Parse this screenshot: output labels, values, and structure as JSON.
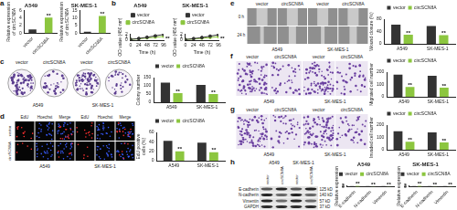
{
  "chart_data": [
    {
      "panel": "a",
      "type": "bar",
      "title": "A549",
      "y_label": "Relative expression of circSCN8A",
      "categories": [
        "vector",
        "circSCN8A"
      ],
      "values": [
        1,
        4.1
      ],
      "colors": [
        "#333333",
        "#8cc63f"
      ],
      "ylim": [
        0,
        6
      ],
      "yticks": [
        0,
        2,
        4,
        6
      ],
      "annotations": [
        {
          "text": "**",
          "category": "circSCN8A"
        }
      ]
    },
    {
      "type": "bar",
      "title": "SK-MES-1",
      "y_label": "Relative expression of circSCN8A",
      "categories": [
        "vector",
        "circSCN8A"
      ],
      "values": [
        1,
        11.2
      ],
      "colors": [
        "#333333",
        "#8cc63f"
      ],
      "ylim": [
        0,
        15
      ],
      "yticks": [
        0,
        5,
        10,
        15
      ],
      "annotations": [
        {
          "text": "**",
          "category": "circSCN8A"
        }
      ]
    },
    {
      "panel": "b",
      "type": "line",
      "title": "A549",
      "x_label": "Time (h)",
      "y_label": "OD value (450 nm)",
      "x": [
        0,
        24,
        48,
        72,
        96
      ],
      "series": [
        {
          "name": "vector",
          "color": "#333333",
          "marker": "circle",
          "values": [
            0.25,
            0.55,
            0.95,
            1.4,
            1.85
          ]
        },
        {
          "name": "circSCN8A",
          "color": "#8cc63f",
          "marker": "square",
          "values": [
            0.25,
            0.45,
            0.7,
            0.95,
            1.2
          ]
        }
      ],
      "xlim": [
        0,
        96
      ],
      "xticks": [
        0,
        24,
        48,
        72,
        96
      ],
      "ylim": [
        0,
        2
      ],
      "yticks": [
        0,
        1,
        2
      ],
      "legend": "top",
      "annotations": [
        {
          "text": "**",
          "series": "circSCN8A"
        }
      ]
    },
    {
      "type": "line",
      "title": "SK-MES-1",
      "x_label": "Time (h)",
      "y_label": "OD value (450 nm)",
      "x": [
        0,
        24,
        48,
        72,
        96
      ],
      "series": [
        {
          "name": "vector",
          "color": "#333333",
          "marker": "circle",
          "values": [
            0.2,
            0.5,
            0.85,
            1.3,
            1.75
          ]
        },
        {
          "name": "circSCN8A",
          "color": "#8cc63f",
          "marker": "square",
          "values": [
            0.2,
            0.4,
            0.6,
            0.85,
            1.1
          ]
        }
      ],
      "xlim": [
        0,
        96
      ],
      "xticks": [
        0,
        24,
        48,
        72,
        96
      ],
      "ylim": [
        0,
        2
      ],
      "yticks": [
        0,
        1,
        2
      ],
      "legend": "top",
      "annotations": [
        {
          "text": "**",
          "series": "circSCN8A"
        }
      ]
    },
    {
      "type": "bar",
      "y_label": "Colony number",
      "categories": [
        "A549",
        "SK-MES-1"
      ],
      "series": [
        {
          "name": "vector",
          "color": "#333333",
          "values": [
            120,
            105
          ]
        },
        {
          "name": "circSCN8A",
          "color": "#8cc63f",
          "values": [
            55,
            50
          ]
        }
      ],
      "ylim": [
        0,
        150
      ],
      "yticks": [
        0,
        50,
        100,
        150
      ],
      "legend": "top",
      "annotations": [
        {
          "text": "**",
          "category": "A549",
          "series": "circSCN8A"
        },
        {
          "text": "**",
          "category": "SK-MES-1",
          "series": "circSCN8A"
        }
      ]
    },
    {
      "type": "bar",
      "y_label": "EdU positive cells (%)",
      "categories": [
        "A549",
        "SK-MES-1"
      ],
      "series": [
        {
          "name": "vector",
          "color": "#333333",
          "values": [
            42,
            38
          ]
        },
        {
          "name": "circSCN8A",
          "color": "#8cc63f",
          "values": [
            20,
            18
          ]
        }
      ],
      "ylim": [
        0,
        60
      ],
      "yticks": [
        0,
        20,
        40,
        60
      ],
      "legend": "top",
      "annotations": [
        {
          "text": "**",
          "category": "A549",
          "series": "circSCN8A"
        },
        {
          "text": "**",
          "category": "SK-MES-1",
          "series": "circSCN8A"
        }
      ]
    },
    {
      "type": "bar",
      "y_label": "Wound closure (%)",
      "categories": [
        "A549",
        "SK-MES-1"
      ],
      "series": [
        {
          "name": "vector",
          "color": "#333333",
          "values": [
            62,
            58
          ]
        },
        {
          "name": "circSCN8A",
          "color": "#8cc63f",
          "values": [
            30,
            28
          ]
        }
      ],
      "ylim": [
        0,
        80
      ],
      "yticks": [
        0,
        40,
        80
      ],
      "legend": "top",
      "annotations": [
        {
          "text": "**",
          "category": "A549",
          "series": "circSCN8A"
        },
        {
          "text": "**",
          "category": "SK-MES-1",
          "series": "circSCN8A"
        }
      ]
    },
    {
      "type": "bar",
      "y_label": "Migrated cell number",
      "categories": [
        "A549",
        "SK-MES-1"
      ],
      "series": [
        {
          "name": "vector",
          "color": "#333333",
          "values": [
            180,
            170
          ]
        },
        {
          "name": "circSCN8A",
          "color": "#8cc63f",
          "values": [
            80,
            75
          ]
        }
      ],
      "ylim": [
        0,
        200
      ],
      "yticks": [
        0,
        100,
        200
      ],
      "legend": "top",
      "annotations": [
        {
          "text": "**",
          "category": "A549",
          "series": "circSCN8A"
        },
        {
          "text": "**",
          "category": "SK-MES-1",
          "series": "circSCN8A"
        }
      ]
    },
    {
      "type": "bar",
      "y_label": "Invaded cell number",
      "categories": [
        "A549",
        "SK-MES-1"
      ],
      "series": [
        {
          "name": "vector",
          "color": "#333333",
          "values": [
            150,
            140
          ]
        },
        {
          "name": "circSCN8A",
          "color": "#8cc63f",
          "values": [
            65,
            60
          ]
        }
      ],
      "ylim": [
        0,
        200
      ],
      "yticks": [
        0,
        100,
        200
      ],
      "legend": "top",
      "annotations": [
        {
          "text": "**",
          "category": "A549",
          "series": "circSCN8A"
        },
        {
          "text": "**",
          "category": "SK-MES-1",
          "series": "circSCN8A"
        }
      ]
    },
    {
      "type": "bar",
      "title": "A549",
      "y_label": "Relative expression",
      "categories": [
        "E-cadherin",
        "N-cadherin",
        "Vimentin"
      ],
      "series": [
        {
          "name": "vector",
          "color": "#333333",
          "values": [
            1,
            1,
            1
          ]
        },
        {
          "name": "circSCN8A",
          "color": "#8cc63f",
          "values": [
            1.65,
            0.45,
            0.5
          ]
        }
      ],
      "ylim": [
        0,
        2
      ],
      "yticks": [
        0,
        1,
        2
      ],
      "legend": "top",
      "annotations": [
        {
          "text": "**",
          "category": "E-cadherin",
          "series": "circSCN8A"
        },
        {
          "text": "**",
          "category": "N-cadherin",
          "series": "circSCN8A"
        },
        {
          "text": "**",
          "category": "Vimentin",
          "series": "circSCN8A"
        }
      ]
    },
    {
      "type": "bar",
      "title": "SK-MES-1",
      "y_label": "Relative expression",
      "categories": [
        "E-cadherin",
        "N-cadherin",
        "Vimentin"
      ],
      "series": [
        {
          "name": "vector",
          "color": "#333333",
          "values": [
            1,
            1,
            1
          ]
        },
        {
          "name": "circSCN8A",
          "color": "#8cc63f",
          "values": [
            1.7,
            0.5,
            0.45
          ]
        }
      ],
      "ylim": [
        0,
        2
      ],
      "yticks": [
        0,
        1,
        2
      ],
      "legend": "top",
      "annotations": [
        {
          "text": "**",
          "category": "E-cadherin",
          "series": "circSCN8A"
        },
        {
          "text": "**",
          "category": "N-cadherin",
          "series": "circSCN8A"
        },
        {
          "text": "**",
          "category": "Vimentin",
          "series": "circSCN8A"
        }
      ]
    }
  ],
  "image_panels": {
    "colony_plates": {
      "panel": "c",
      "columns": [
        "vector",
        "circSCN8A",
        "vector",
        "circSCN8A"
      ],
      "groups": [
        "A549",
        "SK-MES-1"
      ]
    },
    "edu_images": {
      "panel": "d",
      "columns": [
        "EdU",
        "Hoechst",
        "Merge",
        "EdU",
        "Hoechst",
        "Merge"
      ],
      "rows": [
        "vector",
        "circSCN8A"
      ],
      "groups": [
        "A549",
        "SK-MES-1"
      ]
    },
    "wound_images": {
      "panel": "e",
      "columns": [
        "vector",
        "circSCN8A",
        "vector",
        "circSCN8A"
      ],
      "rows": [
        "0 h",
        "24 h"
      ],
      "groups": [
        "A549",
        "SK-MES-1"
      ]
    },
    "migration_images": {
      "panel": "f",
      "columns": [
        "vector",
        "circSCN8A",
        "vector",
        "circSCN8A"
      ],
      "groups": [
        "A549",
        "SK-MES-1"
      ]
    },
    "invasion_images": {
      "panel": "g",
      "columns": [
        "vector",
        "circSCN8A",
        "vector",
        "circSCN8A"
      ],
      "groups": [
        "A549",
        "SK-MES-1"
      ]
    },
    "western_blot": {
      "panel": "h",
      "columns": [
        "vector",
        "circSCN8A",
        "vector",
        "circSCN8A"
      ],
      "groups": [
        "A549",
        "SK-MES-1"
      ],
      "rows": [
        {
          "protein": "E-cadherin",
          "size": "125 kD"
        },
        {
          "protein": "N-cadherin",
          "size": "140 kD"
        },
        {
          "protein": "Vimentin",
          "size": "57 kD"
        },
        {
          "protein": "GAPDH",
          "size": "37 kD"
        }
      ]
    }
  }
}
